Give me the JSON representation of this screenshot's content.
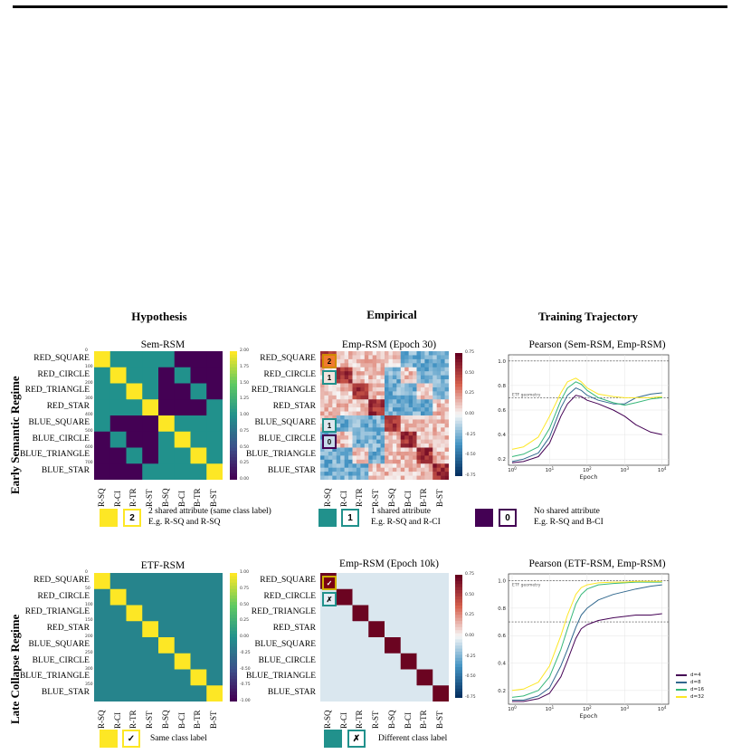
{
  "columns": [
    "Hypothesis",
    "Empirical",
    "Training Trajectory"
  ],
  "regimes": [
    "Early Semantic Regime",
    "Late Collapse Regime"
  ],
  "row_labels": [
    "RED_SQUARE",
    "RED_CIRCLE",
    "RED_TRIANGLE",
    "RED_STAR",
    "BLUE_SQUARE",
    "BLUE_CIRCLE",
    "BLUE_TRIANGLE",
    "BLUE_STAR"
  ],
  "col_labels": [
    "R-SQ",
    "R-CI",
    "R-TR",
    "R-ST",
    "B-SQ",
    "B-CI",
    "B-TR",
    "B-ST"
  ],
  "panels": {
    "sem_rsm": {
      "title": "Sem-RSM",
      "colorbar_ticks": [
        "2.00",
        "1.75",
        "1.50",
        "1.25",
        "1.00",
        "0.75",
        "0.50",
        "0.25",
        "0.00"
      ],
      "axis_ticks": [
        "0",
        "100",
        "200",
        "300",
        "400",
        "500",
        "600",
        "700"
      ]
    },
    "emp_rsm_30": {
      "title": "Emp-RSM (Epoch 30)",
      "colorbar_ticks": [
        "0.75",
        "0.50",
        "0.25",
        "0.00",
        "-0.25",
        "-0.50",
        "-0.75"
      ],
      "markers": [
        "2",
        "1",
        "1",
        "0"
      ]
    },
    "etf_rsm": {
      "title": "ETF-RSM",
      "colorbar_ticks": [
        "1.00",
        "0.75",
        "0.50",
        "0.25",
        "0.00",
        "-0.25",
        "-0.50",
        "-0.75",
        "-1.00"
      ],
      "axis_ticks": [
        "0",
        "50",
        "100",
        "150",
        "200",
        "250",
        "300",
        "350"
      ]
    },
    "emp_rsm_10k": {
      "title": "Emp-RSM (Epoch 10k)",
      "colorbar_ticks": [
        "0.75",
        "0.50",
        "0.25",
        "0.00",
        "-0.25",
        "-0.50",
        "-0.75"
      ],
      "markers": [
        "✓",
        "✗"
      ]
    },
    "traj_top": {
      "title": "Pearson (Sem-RSM, Emp-RSM)",
      "annotation": "ETF geometry",
      "xlabel": "Epoch"
    },
    "traj_bottom": {
      "title": "Pearson (ETF-RSM, Emp-RSM)",
      "annotation": "ETF geometry",
      "xlabel": "Epoch"
    }
  },
  "legend_top": [
    {
      "symbol": "2",
      "line1": "2 shared attribute (same class label)",
      "line2": "E.g. R-SQ and R-SQ",
      "color": "#fde725",
      "border": "#fde725"
    },
    {
      "symbol": "1",
      "line1": "1 shared attribute",
      "line2": "E.g. R-SQ and R-CI",
      "color": "#21918c",
      "border": "#21918c"
    },
    {
      "symbol": "0",
      "line1": "No shared attribute",
      "line2": "E.g. R-SQ and B-CI",
      "color": "#440154",
      "border": "#440154"
    }
  ],
  "legend_bottom": [
    {
      "symbol": "✓",
      "line1": "Same class label",
      "color": "#fde725",
      "border": "#fde725"
    },
    {
      "symbol": "✗",
      "line1": "Different class label",
      "color": "#21918c",
      "border": "#21918c"
    }
  ],
  "chart_data": [
    {
      "type": "line",
      "title": "Pearson (Sem-RSM, Emp-RSM)",
      "xlabel": "Epoch",
      "ylabel": "",
      "xscale": "log",
      "xlim": [
        0.8,
        15000
      ],
      "ylim": [
        0.15,
        1.05
      ],
      "x_ticks": [
        "10^0",
        "10^1",
        "10^2",
        "10^3",
        "10^4"
      ],
      "y_ticks": [
        0.2,
        0.4,
        0.6,
        0.8,
        1.0
      ],
      "reference_lines": [
        1.0,
        0.7
      ],
      "x": [
        1,
        2,
        5,
        10,
        20,
        30,
        50,
        70,
        100,
        200,
        500,
        1000,
        2000,
        5000,
        10000
      ],
      "series": [
        {
          "name": "d=4",
          "color": "#440154",
          "values": [
            0.17,
            0.18,
            0.22,
            0.33,
            0.55,
            0.65,
            0.72,
            0.71,
            0.68,
            0.65,
            0.6,
            0.55,
            0.48,
            0.42,
            0.4
          ]
        },
        {
          "name": "d=8",
          "color": "#31688e",
          "values": [
            0.18,
            0.2,
            0.25,
            0.38,
            0.62,
            0.72,
            0.78,
            0.76,
            0.72,
            0.68,
            0.65,
            0.65,
            0.7,
            0.73,
            0.74
          ]
        },
        {
          "name": "d=16",
          "color": "#35b779",
          "values": [
            0.22,
            0.24,
            0.3,
            0.45,
            0.68,
            0.78,
            0.83,
            0.81,
            0.76,
            0.7,
            0.66,
            0.64,
            0.66,
            0.69,
            0.7
          ]
        },
        {
          "name": "d=32",
          "color": "#fde725",
          "values": [
            0.28,
            0.3,
            0.38,
            0.55,
            0.74,
            0.83,
            0.86,
            0.83,
            0.78,
            0.73,
            0.71,
            0.7,
            0.7,
            0.7,
            0.71
          ]
        }
      ]
    },
    {
      "type": "line",
      "title": "Pearson (ETF-RSM, Emp-RSM)",
      "xlabel": "Epoch",
      "ylabel": "",
      "xscale": "log",
      "xlim": [
        0.8,
        15000
      ],
      "ylim": [
        0.1,
        1.05
      ],
      "x_ticks": [
        "10^0",
        "10^1",
        "10^2",
        "10^3",
        "10^4"
      ],
      "y_ticks": [
        0.2,
        0.4,
        0.6,
        0.8,
        1.0
      ],
      "reference_lines": [
        1.0,
        0.7
      ],
      "x": [
        1,
        2,
        5,
        10,
        20,
        30,
        50,
        70,
        100,
        200,
        500,
        1000,
        2000,
        5000,
        10000
      ],
      "series": [
        {
          "name": "d=4",
          "color": "#440154",
          "values": [
            0.12,
            0.12,
            0.14,
            0.18,
            0.3,
            0.42,
            0.58,
            0.65,
            0.68,
            0.71,
            0.73,
            0.74,
            0.75,
            0.75,
            0.76
          ]
        },
        {
          "name": "d=8",
          "color": "#31688e",
          "values": [
            0.13,
            0.13,
            0.16,
            0.22,
            0.38,
            0.5,
            0.66,
            0.75,
            0.8,
            0.86,
            0.9,
            0.92,
            0.94,
            0.96,
            0.97
          ]
        },
        {
          "name": "d=16",
          "color": "#35b779",
          "values": [
            0.15,
            0.16,
            0.2,
            0.3,
            0.5,
            0.65,
            0.83,
            0.9,
            0.94,
            0.97,
            0.98,
            0.985,
            0.99,
            0.99,
            0.99
          ]
        },
        {
          "name": "d=32",
          "color": "#fde725",
          "values": [
            0.2,
            0.21,
            0.26,
            0.38,
            0.6,
            0.75,
            0.9,
            0.95,
            0.97,
            0.985,
            0.99,
            0.99,
            0.995,
            0.995,
            0.995
          ]
        }
      ]
    }
  ]
}
